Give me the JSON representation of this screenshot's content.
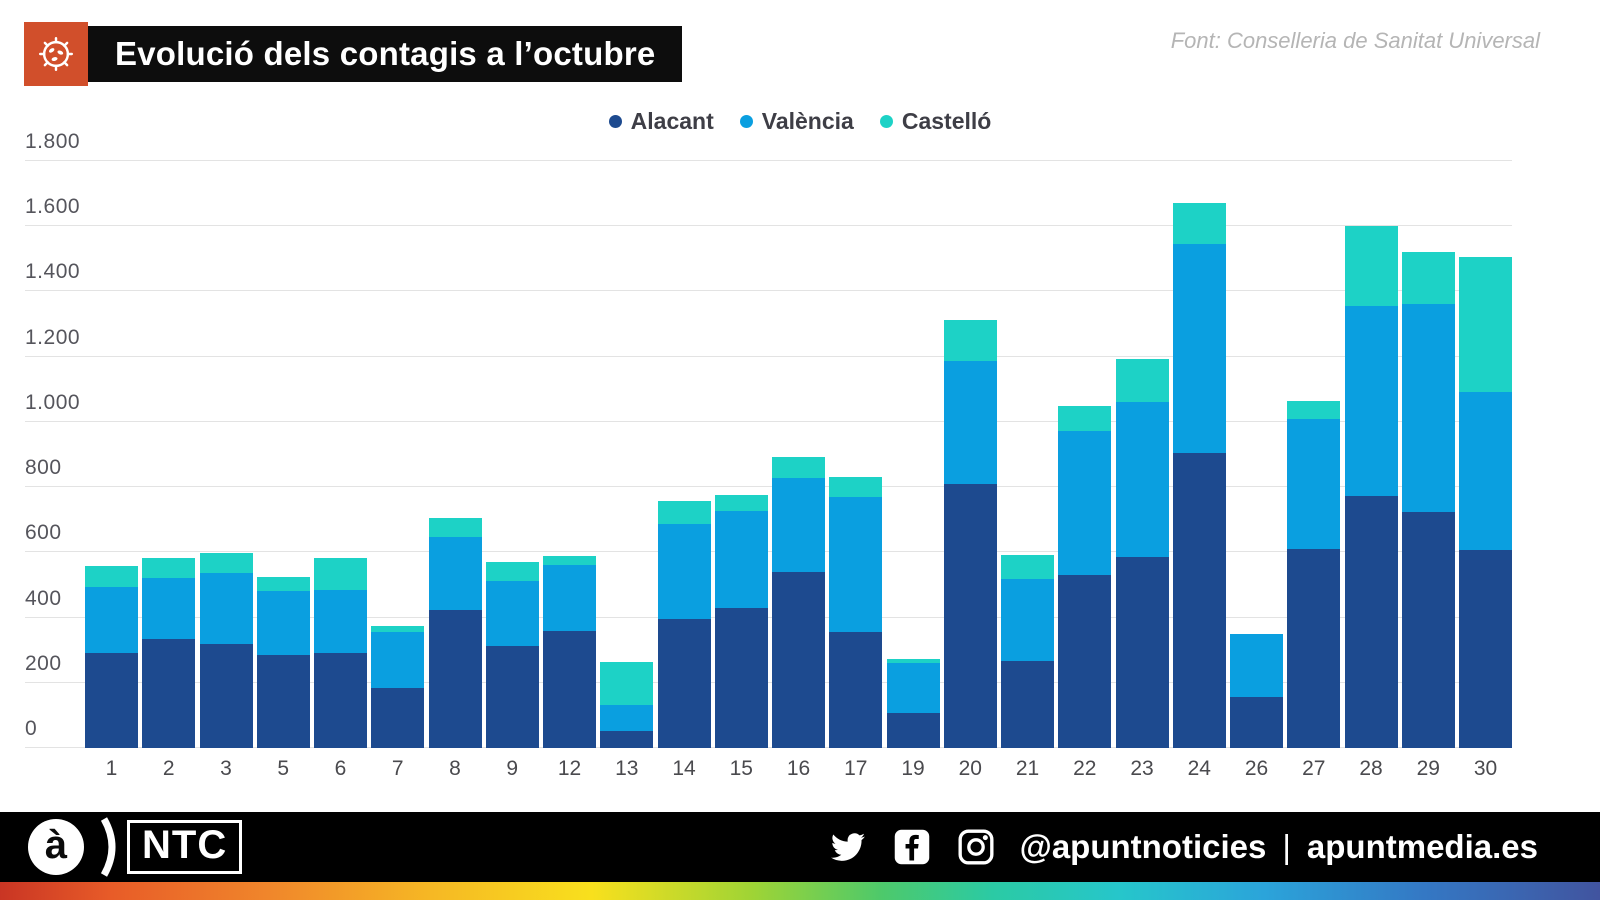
{
  "header": {
    "title": "Evolució dels contagis a l’octubre",
    "source": "Font: Conselleria de Sanitat Universal"
  },
  "legend": [
    {
      "label": "Alacant",
      "color": "#1d4a8f"
    },
    {
      "label": "València",
      "color": "#0a9fe0"
    },
    {
      "label": "Castelló",
      "color": "#1dd2c6"
    }
  ],
  "chart_data": {
    "type": "bar",
    "stacked": true,
    "title": "Evolució dels contagis a l’octubre",
    "categories": [
      "1",
      "2",
      "3",
      "5",
      "6",
      "7",
      "8",
      "9",
      "12",
      "13",
      "14",
      "15",
      "16",
      "17",
      "19",
      "20",
      "21",
      "22",
      "23",
      "24",
      "26",
      "27",
      "28",
      "29",
      "30"
    ],
    "series": [
      {
        "name": "Alacant",
        "color": "#1d4a8f",
        "values": [
          290,
          335,
          320,
          285,
          290,
          185,
          423,
          312,
          360,
          52,
          395,
          429,
          541,
          355,
          107,
          810,
          267,
          530,
          586,
          905,
          155,
          610,
          772,
          724,
          606
        ]
      },
      {
        "name": "València",
        "color": "#0a9fe0",
        "values": [
          205,
          185,
          216,
          196,
          194,
          171,
          223,
          201,
          201,
          81,
          291,
          297,
          286,
          416,
          154,
          378,
          251,
          443,
          475,
          640,
          195,
          400,
          583,
          637,
          485
        ]
      },
      {
        "name": "Castelló",
        "color": "#1dd2c6",
        "values": [
          62,
          62,
          61,
          43,
          99,
          18,
          58,
          58,
          28,
          130,
          71,
          50,
          64,
          59,
          12,
          123,
          74,
          77,
          133,
          125,
          0,
          55,
          245,
          161,
          416
        ]
      }
    ],
    "xlabel": "",
    "ylabel": "",
    "ylim": [
      0,
      1800
    ],
    "ytick_step": 200,
    "ytick_labels": [
      "0",
      "200",
      "400",
      "600",
      "800",
      "1.000",
      "1.200",
      "1.400",
      "1.600",
      "1.800"
    ],
    "grid": true,
    "legend_position": "top-center"
  },
  "footer": {
    "brand_letter": "à",
    "brand_acronym": "NTC",
    "handle": "@apuntnoticies",
    "separator": "|",
    "website": "apuntmedia.es",
    "icons": [
      "twitter-icon",
      "facebook-icon",
      "instagram-icon"
    ]
  }
}
